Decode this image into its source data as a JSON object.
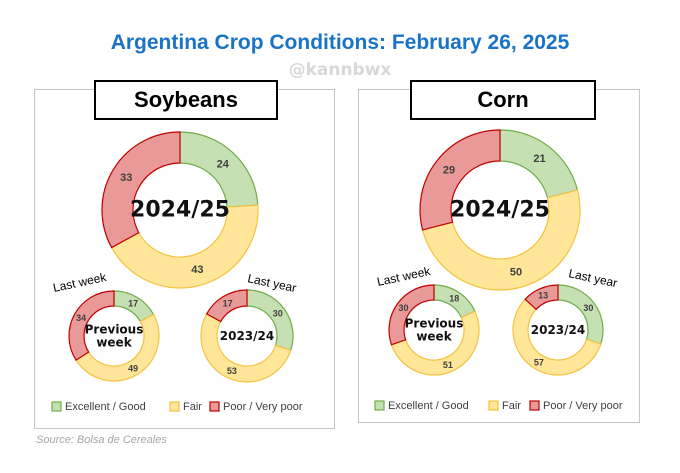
{
  "title": "Argentina Crop Conditions: February 26, 2025",
  "watermark": "@kannbwx",
  "source": "Source: Bolsa de Cereales",
  "colors": {
    "Excellent / Good": {
      "fill": "#c5e0b3",
      "stroke": "#70ad47"
    },
    "Fair": {
      "fill": "#ffe699",
      "stroke": "#f5c242"
    },
    "Poor / Very poor": {
      "fill": "#ea9999",
      "stroke": "#c00000"
    }
  },
  "legend": [
    "Excellent / Good",
    "Fair",
    "Poor / Very poor"
  ],
  "chart_data": [
    {
      "type": "pie",
      "crop": "Soybeans",
      "donuts": [
        {
          "center_label": [
            "2024/25"
          ],
          "annotation": "",
          "values": [
            24,
            43,
            33
          ]
        },
        {
          "center_label": [
            "Previous",
            "week"
          ],
          "annotation": "Last week",
          "values": [
            17,
            49,
            34
          ]
        },
        {
          "center_label": [
            "2023/24"
          ],
          "annotation": "Last year",
          "values": [
            30,
            53,
            17
          ]
        }
      ]
    },
    {
      "type": "pie",
      "crop": "Corn",
      "donuts": [
        {
          "center_label": [
            "2024/25"
          ],
          "annotation": "",
          "values": [
            21,
            50,
            29
          ]
        },
        {
          "center_label": [
            "Previous",
            "week"
          ],
          "annotation": "Last week",
          "values": [
            18,
            51,
            30
          ]
        },
        {
          "center_label": [
            "2023/24"
          ],
          "annotation": "Last year",
          "values": [
            30,
            57,
            13
          ]
        }
      ]
    }
  ]
}
